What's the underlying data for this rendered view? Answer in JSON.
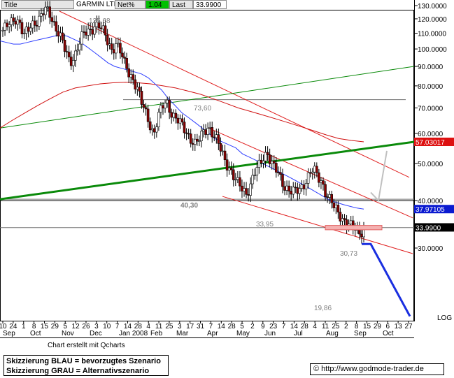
{
  "header": {
    "title_label": "Title",
    "instrument": "GARMIN LTD",
    "netpct_label": "Net%",
    "netpct_value": "1.04",
    "last_label": "Last",
    "last_value": "33.9900"
  },
  "note": "Chart erstellt mit Qcharts",
  "legend_box": {
    "line1": "Skizzierung BLAU = bevorzugtes Szenario",
    "line2": "Skizzierung GRAU = Alternativszenario"
  },
  "source": "© http://www.godmode-trader.de",
  "colors": {
    "candle_up": "#ffffff",
    "candle_down": "#8b0000",
    "ma_short": "#3040ff",
    "ma_long": "#d01010",
    "trend_red": "#e02020",
    "trend_green": "#0a8a0a",
    "scenario_blue": "#1a2fe0",
    "scenario_grey": "#c0c0c0",
    "badge_red": "#dd1010",
    "badge_blue": "#0a1ad0",
    "badge_black": "#000000"
  },
  "chart_data": {
    "type": "candlestick",
    "y_scale": "log",
    "y_axis_label": "LOG",
    "ylim": [
      17,
      135
    ],
    "y_ticks": [
      {
        "value": 130,
        "label": "130.0000"
      },
      {
        "value": 120,
        "label": "120.0000"
      },
      {
        "value": 110,
        "label": "110.0000"
      },
      {
        "value": 100,
        "label": "100.0000"
      },
      {
        "value": 90,
        "label": "90.0000"
      },
      {
        "value": 80,
        "label": "80.0000"
      },
      {
        "value": 70,
        "label": "70.0000"
      },
      {
        "value": 60,
        "label": "60.0000"
      },
      {
        "value": 50,
        "label": "50.0000"
      },
      {
        "value": 40,
        "label": "40.0000"
      },
      {
        "value": 30,
        "label": "30.0000"
      }
    ],
    "price_badges": [
      {
        "value": 57.03017,
        "label": "57.03017",
        "color": "badge_red"
      },
      {
        "value": 37.97105,
        "label": "37.97105",
        "color": "badge_blue"
      },
      {
        "value": 33.99,
        "label": "33.9900",
        "color": "badge_black"
      }
    ],
    "annotations": [
      {
        "label": "125,68",
        "value": 125.68
      },
      {
        "label": "73,60",
        "value": 73.6
      },
      {
        "label": "40,30",
        "value": 40.3
      },
      {
        "label": "33,95",
        "value": 33.95
      },
      {
        "label": "30,73",
        "value": 30.73
      },
      {
        "label": "19,86",
        "value": 19.86
      }
    ],
    "x_day_ticks": [
      "10",
      "24",
      "1",
      "8",
      "15",
      "29",
      "5",
      "12",
      "26",
      "3",
      "10",
      "7",
      "14",
      "28",
      "4",
      "11",
      "25",
      "3",
      "17",
      "31",
      "7",
      "14",
      "28",
      "5",
      "2",
      "9",
      "23",
      "7",
      "14",
      "28",
      "4",
      "11",
      "25",
      "2",
      "8",
      "15",
      "29",
      "6",
      "13",
      "27"
    ],
    "x_month_labels": [
      "Sep",
      "Oct",
      "Nov",
      "Dec",
      "Jan 2008",
      "Feb",
      "Mar",
      "Apr",
      "May",
      "Jun",
      "Jul",
      "Aug",
      "Sep",
      "Oct"
    ],
    "close_path": [
      112,
      114,
      117,
      121,
      118,
      108,
      111,
      116,
      119,
      122,
      126,
      124,
      118,
      113,
      106,
      97,
      92,
      96,
      103,
      108,
      110,
      112,
      117,
      115,
      110,
      104,
      100,
      104,
      98,
      91,
      87,
      84,
      79,
      72,
      68,
      64,
      60,
      66,
      70,
      73,
      69,
      66,
      64,
      62,
      60,
      58,
      56,
      58,
      61,
      63,
      60,
      57,
      54,
      51,
      49,
      46,
      44,
      43,
      42,
      44,
      47,
      49,
      52,
      54,
      50,
      48,
      46,
      44,
      43,
      42,
      42,
      43,
      45,
      47,
      48,
      46,
      45,
      42,
      40,
      38,
      37,
      36,
      35,
      34,
      33.5,
      33,
      33.99
    ],
    "ma_short_path": [
      105,
      104,
      103,
      103,
      104,
      105,
      106,
      107,
      108,
      109,
      108,
      106,
      104,
      101,
      98,
      95,
      92,
      90,
      89,
      88,
      87,
      86,
      84,
      81,
      78,
      74,
      71,
      68,
      66,
      64,
      62,
      60,
      58,
      57,
      56,
      55,
      53,
      52,
      51,
      50,
      49,
      48,
      47,
      46,
      45,
      44,
      43,
      42,
      41,
      40,
      39.5,
      39,
      38.6,
      38.2,
      37.97
    ],
    "ma_long_path": [
      62,
      65,
      68,
      71,
      74,
      77,
      79,
      80,
      81,
      81.5,
      81.8,
      81.5,
      81,
      80,
      79,
      77.5,
      76,
      74,
      72,
      70,
      68.5,
      67,
      65.5,
      64,
      62.5,
      61,
      59.5,
      58.2,
      57.5,
      57.03
    ],
    "trendlines": [
      {
        "name": "red_upper",
        "from": [
          85,
          125.68
        ],
        "to": [
          585,
          46
        ],
        "color": "trend_red"
      },
      {
        "name": "red_lower_a",
        "from": [
          298,
          62
        ],
        "to": [
          590,
          36
        ],
        "color": "trend_red"
      },
      {
        "name": "red_lower_b",
        "from": [
          318,
          41
        ],
        "to": [
          590,
          29
        ],
        "color": "trend_red"
      },
      {
        "name": "green_thin",
        "from": [
          0,
          62
        ],
        "to": [
          592,
          90
        ],
        "color": "trend_green"
      },
      {
        "name": "green_thick",
        "from": [
          0,
          40.3
        ],
        "to": [
          592,
          57.03
        ],
        "color": "trend_green"
      }
    ],
    "horizontal_levels": [
      73.6,
      40.3,
      33.95
    ],
    "scenario_blue": [
      [
        517,
        30.73
      ],
      [
        530,
        30.73
      ],
      [
        586,
        19.86
      ]
    ],
    "scenario_grey": [
      [
        530,
        42
      ],
      [
        541,
        40
      ],
      [
        553,
        54
      ]
    ]
  }
}
